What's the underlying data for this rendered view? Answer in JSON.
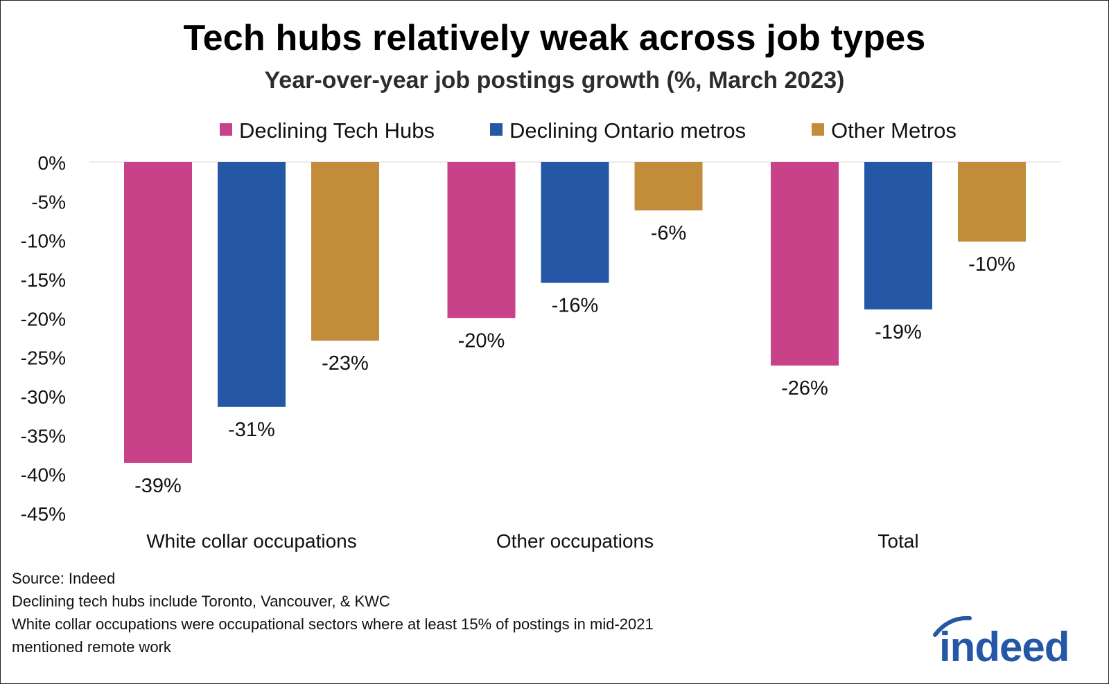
{
  "title": "Tech hubs relatively weak across job types",
  "subtitle": "Year-over-year job postings growth (%, March 2023)",
  "chart_data": {
    "type": "bar",
    "categories": [
      "White collar occupations",
      "Other occupations",
      "Total"
    ],
    "series": [
      {
        "name": "Declining Tech Hubs",
        "color": "#c8428a",
        "values": [
          -38.6,
          -20.0,
          -26.1
        ],
        "labels": [
          "-39%",
          "-20%",
          "-26%"
        ]
      },
      {
        "name": "Declining Ontario metros",
        "color": "#2457a6",
        "values": [
          -31.4,
          -15.5,
          -18.9
        ],
        "labels": [
          "-31%",
          "-16%",
          "-19%"
        ]
      },
      {
        "name": "Other Metros",
        "color": "#c28c3b",
        "values": [
          -22.9,
          -6.2,
          -10.2
        ],
        "labels": [
          "-23%",
          "-6%",
          "-10%"
        ]
      }
    ],
    "yticks": [
      "0%",
      "-5%",
      "-10%",
      "-15%",
      "-20%",
      "-25%",
      "-30%",
      "-35%",
      "-40%",
      "-45%"
    ],
    "ylim": [
      -45,
      0
    ],
    "legend_position": "top",
    "grid": false
  },
  "footnotes": [
    "Source: Indeed",
    "Declining tech hubs include Toronto, Vancouver, & KWC",
    "White collar occupations were occupational sectors where at least 15% of postings in mid-2021",
    "mentioned remote work"
  ],
  "logo": {
    "text": "indeed",
    "color": "#2557a7"
  }
}
